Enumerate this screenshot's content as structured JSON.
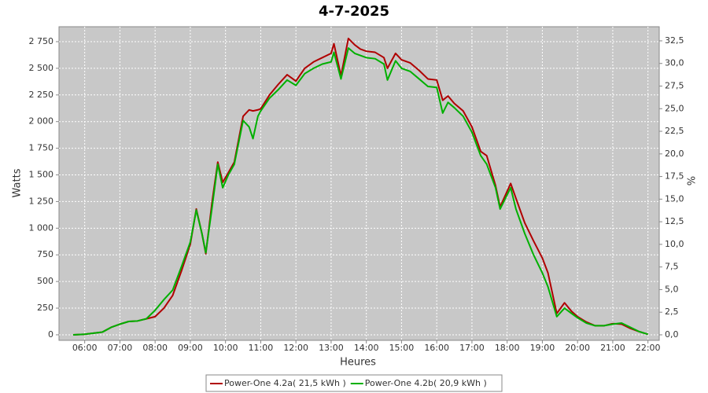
{
  "chart_data": {
    "type": "line",
    "title": "4-7-2025",
    "x_label": "Heures",
    "y_label": "Watts",
    "y2_label": "%",
    "x": [
      5.67,
      6,
      6.25,
      6.5,
      6.75,
      7,
      7.25,
      7.5,
      7.75,
      8,
      8.25,
      8.5,
      8.75,
      9,
      9.17,
      9.33,
      9.44,
      9.62,
      9.78,
      9.92,
      10.08,
      10.25,
      10.5,
      10.67,
      10.78,
      10.92,
      11,
      11.25,
      11.5,
      11.75,
      12,
      12.25,
      12.5,
      12.75,
      13,
      13.08,
      13.28,
      13.49,
      13.67,
      13.83,
      14,
      14.25,
      14.5,
      14.6,
      14.83,
      15,
      15.25,
      15.5,
      15.75,
      16,
      16.17,
      16.32,
      16.5,
      16.75,
      17,
      17.25,
      17.42,
      17.67,
      17.8,
      18.1,
      18.25,
      18.5,
      18.75,
      19,
      19.16,
      19.41,
      19.63,
      19.83,
      20,
      20.25,
      20.5,
      20.75,
      21,
      21.25,
      21.5,
      21.75,
      22
    ],
    "series": [
      {
        "name": "Power-One 4.2a( 21,5 kWh )",
        "color": "#b00000",
        "values": [
          0,
          5,
          15,
          25,
          70,
          100,
          125,
          130,
          150,
          170,
          250,
          370,
          600,
          850,
          1180,
          950,
          760,
          1250,
          1620,
          1430,
          1520,
          1620,
          2050,
          2110,
          2100,
          2110,
          2120,
          2250,
          2350,
          2440,
          2380,
          2500,
          2560,
          2600,
          2640,
          2730,
          2430,
          2780,
          2720,
          2680,
          2660,
          2650,
          2600,
          2500,
          2640,
          2580,
          2550,
          2480,
          2400,
          2390,
          2200,
          2240,
          2170,
          2100,
          1950,
          1720,
          1680,
          1400,
          1200,
          1420,
          1280,
          1050,
          880,
          720,
          580,
          200,
          300,
          220,
          170,
          120,
          85,
          85,
          105,
          100,
          60,
          30,
          5
        ]
      },
      {
        "name": "Power-One 4.2b( 20,9 kWh )",
        "color": "#00b000",
        "values": [
          0,
          5,
          15,
          25,
          70,
          100,
          125,
          130,
          150,
          230,
          330,
          420,
          640,
          870,
          1170,
          950,
          770,
          1200,
          1600,
          1380,
          1500,
          1600,
          2010,
          1950,
          1840,
          2050,
          2100,
          2220,
          2300,
          2390,
          2340,
          2450,
          2500,
          2540,
          2560,
          2650,
          2400,
          2690,
          2640,
          2620,
          2600,
          2590,
          2540,
          2390,
          2570,
          2500,
          2470,
          2400,
          2330,
          2320,
          2080,
          2180,
          2130,
          2050,
          1900,
          1680,
          1600,
          1380,
          1180,
          1380,
          1180,
          950,
          750,
          580,
          450,
          170,
          250,
          200,
          160,
          110,
          85,
          85,
          100,
          110,
          70,
          30,
          5
        ]
      }
    ],
    "xlim": [
      5.27,
      22.32
    ],
    "xticks": [
      {
        "value": 6,
        "label": "06:00"
      },
      {
        "value": 7,
        "label": "07:00"
      },
      {
        "value": 8,
        "label": "08:00"
      },
      {
        "value": 9,
        "label": "09:00"
      },
      {
        "value": 10,
        "label": "10:00"
      },
      {
        "value": 11,
        "label": "11:00"
      },
      {
        "value": 12,
        "label": "12:00"
      },
      {
        "value": 13,
        "label": "13:00"
      },
      {
        "value": 14,
        "label": "14:00"
      },
      {
        "value": 15,
        "label": "15:00"
      },
      {
        "value": 16,
        "label": "16:00"
      },
      {
        "value": 17,
        "label": "17:00"
      },
      {
        "value": 18,
        "label": "18:00"
      },
      {
        "value": 19,
        "label": "19:00"
      },
      {
        "value": 20,
        "label": "20:00"
      },
      {
        "value": 21,
        "label": "21:00"
      },
      {
        "value": 22,
        "label": "22:00"
      }
    ],
    "ylim": [
      -52,
      2890
    ],
    "yticks": [
      0,
      250,
      500,
      750,
      {
        "value": 1000,
        "label": "1 000"
      },
      {
        "value": 1250,
        "label": "1 250"
      },
      {
        "value": 1500,
        "label": "1 500"
      },
      {
        "value": 1750,
        "label": "1 750"
      },
      {
        "value": 2000,
        "label": "2 000"
      },
      {
        "value": 2250,
        "label": "2 250"
      },
      {
        "value": 2500,
        "label": "2 500"
      },
      {
        "value": 2750,
        "label": "2 750"
      }
    ],
    "y2lim": [
      -0.61,
      34.06
    ],
    "y2ticks": [
      {
        "value": 0,
        "label": "0,0"
      },
      {
        "value": 2.5,
        "label": "2,5"
      },
      {
        "value": 5,
        "label": "5,0"
      },
      {
        "value": 7.5,
        "label": "7,5"
      },
      {
        "value": 10,
        "label": "10,0"
      },
      {
        "value": 12.5,
        "label": "12,5"
      },
      {
        "value": 15,
        "label": "15,0"
      },
      {
        "value": 17.5,
        "label": "17,5"
      },
      {
        "value": 20,
        "label": "20,0"
      },
      {
        "value": 22.5,
        "label": "22,5"
      },
      {
        "value": 25,
        "label": "25,0"
      },
      {
        "value": 27.5,
        "label": "27,5"
      },
      {
        "value": 30,
        "label": "30,0"
      },
      {
        "value": 32.5,
        "label": "32,5"
      }
    ],
    "grid": true
  }
}
